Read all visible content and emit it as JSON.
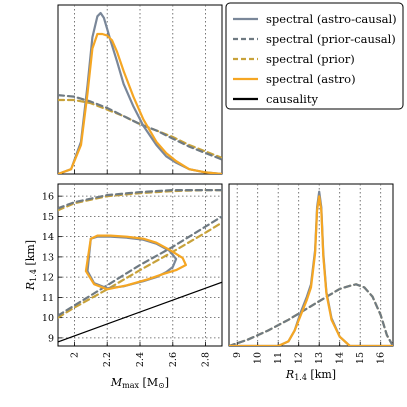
{
  "colors": {
    "astro_causal": "#7a8799",
    "prior_causal": "#6f7a82",
    "prior": "#c8a23a",
    "astro": "#f5a623",
    "causality": "#000000",
    "grid": "#555555"
  },
  "legend": {
    "items": [
      {
        "label": "spectral (astro-causal)",
        "color": "#7a8799",
        "dash": "solid"
      },
      {
        "label": "spectral (prior-causal)",
        "color": "#6f7a82",
        "dash": "dashed"
      },
      {
        "label": "spectral (prior)",
        "color": "#c8a23a",
        "dash": "dashed"
      },
      {
        "label": "spectral (astro)",
        "color": "#f5a623",
        "dash": "solid"
      },
      {
        "label": "causality",
        "color": "#000000",
        "dash": "solid"
      }
    ]
  },
  "chart_data": [
    {
      "panel": "mmax-marginal",
      "type": "line",
      "x_range": [
        1.9,
        2.9
      ],
      "y_range": [
        0,
        1.05
      ],
      "xticks": [
        2.0,
        2.2,
        2.4,
        2.6,
        2.8
      ],
      "series": [
        {
          "name": "spectral (astro-causal)",
          "x": [
            1.9,
            1.98,
            2.04,
            2.08,
            2.11,
            2.14,
            2.16,
            2.18,
            2.2,
            2.22,
            2.26,
            2.3,
            2.36,
            2.42,
            2.5,
            2.56,
            2.62,
            2.7,
            2.8,
            2.9
          ],
          "y": [
            0,
            0.03,
            0.2,
            0.55,
            0.85,
            0.98,
            1.0,
            0.97,
            0.9,
            0.83,
            0.7,
            0.56,
            0.42,
            0.3,
            0.18,
            0.11,
            0.07,
            0.03,
            0.01,
            0
          ]
        },
        {
          "name": "spectral (astro)",
          "x": [
            1.9,
            1.98,
            2.04,
            2.08,
            2.11,
            2.14,
            2.17,
            2.2,
            2.23,
            2.26,
            2.3,
            2.36,
            2.42,
            2.5,
            2.56,
            2.62,
            2.7,
            2.8,
            2.9
          ],
          "y": [
            0,
            0.03,
            0.18,
            0.5,
            0.78,
            0.87,
            0.87,
            0.86,
            0.83,
            0.76,
            0.64,
            0.48,
            0.34,
            0.2,
            0.13,
            0.08,
            0.03,
            0.01,
            0
          ]
        },
        {
          "name": "spectral (prior-causal)",
          "x": [
            1.9,
            2.0,
            2.1,
            2.2,
            2.3,
            2.4,
            2.5,
            2.6,
            2.7,
            2.8,
            2.9
          ],
          "y": [
            0.49,
            0.48,
            0.45,
            0.41,
            0.36,
            0.31,
            0.27,
            0.22,
            0.17,
            0.13,
            0.09
          ]
        },
        {
          "name": "spectral (prior)",
          "x": [
            1.9,
            2.0,
            2.1,
            2.2,
            2.3,
            2.4,
            2.5,
            2.6,
            2.7,
            2.8,
            2.9
          ],
          "y": [
            0.46,
            0.46,
            0.44,
            0.4,
            0.36,
            0.31,
            0.27,
            0.23,
            0.18,
            0.14,
            0.1
          ]
        }
      ]
    },
    {
      "panel": "joint-mmax-r14",
      "type": "line",
      "xlabel": "M_max [M_⊙]",
      "ylabel": "R_1.4 [km]",
      "x_range": [
        1.9,
        2.9
      ],
      "y_range": [
        8.6,
        16.6
      ],
      "xticks": [
        2.0,
        2.2,
        2.4,
        2.6,
        2.8
      ],
      "yticks": [
        9,
        10,
        11,
        12,
        13,
        14,
        15,
        16
      ],
      "series": [
        {
          "name": "spectral (astro-causal)",
          "x": [
            2.1,
            2.14,
            2.22,
            2.32,
            2.42,
            2.5,
            2.58,
            2.62,
            2.6,
            2.56,
            2.5,
            2.42,
            2.3,
            2.2,
            2.12,
            2.08,
            2.1
          ],
          "y": [
            13.9,
            14.0,
            14.0,
            13.95,
            13.85,
            13.65,
            13.3,
            12.9,
            12.5,
            12.25,
            12.0,
            11.8,
            11.55,
            11.45,
            11.7,
            12.3,
            13.9
          ]
        },
        {
          "name": "spectral (astro)",
          "x": [
            2.1,
            2.14,
            2.22,
            2.32,
            2.42,
            2.5,
            2.58,
            2.66,
            2.68,
            2.62,
            2.54,
            2.45,
            2.32,
            2.2,
            2.12,
            2.07,
            2.1
          ],
          "y": [
            13.9,
            14.05,
            14.05,
            14.0,
            13.9,
            13.7,
            13.35,
            12.95,
            12.6,
            12.35,
            12.15,
            11.9,
            11.6,
            11.4,
            11.65,
            12.3,
            13.9
          ]
        },
        {
          "name": "spectral (prior-causal)",
          "x": [
            1.9,
            2.0,
            2.2,
            2.4,
            2.6,
            2.8,
            2.9
          ],
          "y": [
            10.1,
            10.6,
            11.6,
            12.6,
            13.5,
            14.5,
            15.0
          ]
        },
        {
          "name": "spectral (prior-causal)",
          "x": [
            1.9,
            2.0,
            2.2,
            2.4,
            2.6,
            2.8,
            2.9
          ],
          "y": [
            15.4,
            15.7,
            16.05,
            16.2,
            16.3,
            16.3,
            16.3
          ]
        },
        {
          "name": "spectral (prior)",
          "x": [
            1.9,
            2.0,
            2.2,
            2.4,
            2.6,
            2.8,
            2.9
          ],
          "y": [
            10.0,
            10.5,
            11.4,
            12.35,
            13.25,
            14.2,
            14.7
          ]
        },
        {
          "name": "spectral (prior)",
          "x": [
            1.9,
            2.0,
            2.2,
            2.4,
            2.6,
            2.8,
            2.9
          ],
          "y": [
            15.3,
            15.65,
            16.0,
            16.15,
            16.25,
            16.3,
            16.3
          ]
        },
        {
          "name": "causality",
          "x": [
            1.9,
            2.9
          ],
          "y": [
            8.8,
            11.75
          ]
        }
      ]
    },
    {
      "panel": "r14-marginal",
      "type": "line",
      "xlabel": "R_1.4 [km]",
      "x_range": [
        8.6,
        16.6
      ],
      "y_range": [
        0,
        1.05
      ],
      "xticks": [
        9,
        10,
        11,
        12,
        13,
        14,
        15,
        16
      ],
      "series": [
        {
          "name": "spectral (astro-causal)",
          "x": [
            8.6,
            11.0,
            11.5,
            11.8,
            12.1,
            12.4,
            12.6,
            12.8,
            12.9,
            13.0,
            13.1,
            13.2,
            13.35,
            13.6,
            14.0,
            14.5,
            16.6
          ],
          "y": [
            0,
            0,
            0.03,
            0.1,
            0.22,
            0.32,
            0.4,
            0.62,
            0.9,
            1.0,
            0.9,
            0.6,
            0.35,
            0.18,
            0.06,
            0,
            0
          ]
        },
        {
          "name": "spectral (astro)",
          "x": [
            8.6,
            11.0,
            11.5,
            11.8,
            12.1,
            12.4,
            12.6,
            12.8,
            12.9,
            13.0,
            13.1,
            13.2,
            13.35,
            13.6,
            14.0,
            14.5,
            16.6
          ],
          "y": [
            0,
            0,
            0.03,
            0.1,
            0.2,
            0.3,
            0.38,
            0.6,
            0.88,
            0.97,
            0.88,
            0.58,
            0.34,
            0.17,
            0.06,
            0,
            0
          ]
        },
        {
          "name": "spectral (prior-causal)",
          "x": [
            8.6,
            9.5,
            10.5,
            11.5,
            12.5,
            13.5,
            14.0,
            14.5,
            14.8,
            15.2,
            15.6,
            16.0,
            16.3,
            16.6
          ],
          "y": [
            0,
            0.04,
            0.1,
            0.17,
            0.25,
            0.33,
            0.37,
            0.39,
            0.4,
            0.38,
            0.32,
            0.2,
            0.07,
            0
          ]
        },
        {
          "name": "spectral (prior)",
          "x": [
            8.6,
            9.5,
            10.5,
            11.5,
            12.5,
            13.5,
            14.0,
            14.5,
            14.8,
            15.2,
            15.6,
            16.0,
            16.3,
            16.6
          ],
          "y": [
            0,
            0.04,
            0.1,
            0.17,
            0.25,
            0.33,
            0.37,
            0.39,
            0.4,
            0.38,
            0.32,
            0.2,
            0.07,
            0
          ]
        }
      ]
    }
  ],
  "labels": {
    "mmax_label_main": "M",
    "mmax_label_sub": "max",
    "mmax_label_unit_open": " [M",
    "mmax_label_unit_sub": "⊙",
    "mmax_label_unit_close": "]",
    "r14_label_main": "R",
    "r14_label_sub": "1.4",
    "r14_label_unit": " [km]"
  }
}
